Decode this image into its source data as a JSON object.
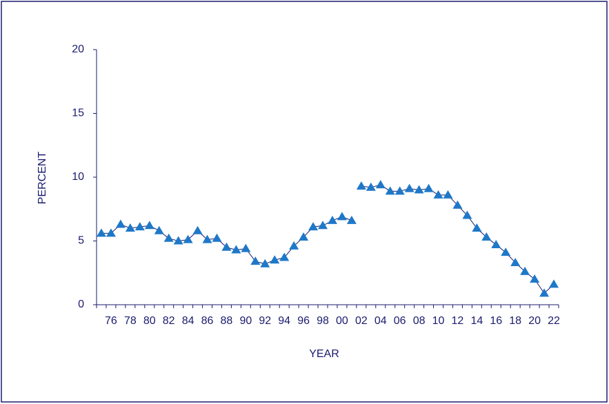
{
  "chart_data": {
    "type": "line",
    "x_label": "YEAR",
    "y_label": "PERCENT",
    "categories": [
      null,
      "76",
      null,
      "78",
      null,
      "80",
      null,
      "82",
      null,
      "84",
      null,
      "86",
      null,
      "88",
      null,
      "90",
      null,
      "92",
      null,
      "94",
      null,
      "96",
      null,
      "98",
      null,
      "00",
      null,
      "02",
      null,
      "04",
      null,
      "06",
      null,
      "08",
      null,
      "10",
      null,
      "12",
      null,
      "14",
      null,
      "16",
      null,
      "18",
      null,
      "20",
      null,
      "22"
    ],
    "series": [
      {
        "color": "#1e78c8",
        "values": [
          5.6,
          5.6,
          6.3,
          6.0,
          6.1,
          6.2,
          5.8,
          5.2,
          5.0,
          5.1,
          5.8,
          5.1,
          5.2,
          4.5,
          4.3,
          4.4,
          3.4,
          3.2,
          3.5,
          3.7,
          4.6,
          5.3,
          6.1,
          6.2,
          6.6,
          6.9,
          6.6,
          null,
          null,
          null,
          null,
          null,
          null,
          null,
          null,
          null,
          null,
          null,
          null,
          null,
          null,
          null,
          null,
          null,
          null,
          null,
          null,
          null
        ]
      },
      {
        "color": "#1e78c8",
        "values": [
          null,
          null,
          null,
          null,
          null,
          null,
          null,
          null,
          null,
          null,
          null,
          null,
          null,
          null,
          null,
          null,
          null,
          null,
          null,
          null,
          null,
          null,
          null,
          null,
          null,
          null,
          null,
          9.3,
          9.2,
          9.4,
          8.9,
          8.9,
          9.1,
          9.0,
          9.1,
          8.6,
          8.6,
          7.8,
          7.0,
          6.0,
          5.3,
          4.7,
          4.1,
          3.3,
          2.6,
          2.0,
          0.9,
          1.6
        ]
      }
    ],
    "ylim": [
      0,
      20
    ],
    "yticks": [
      0,
      5,
      10,
      15,
      20
    ],
    "grid": false
  }
}
